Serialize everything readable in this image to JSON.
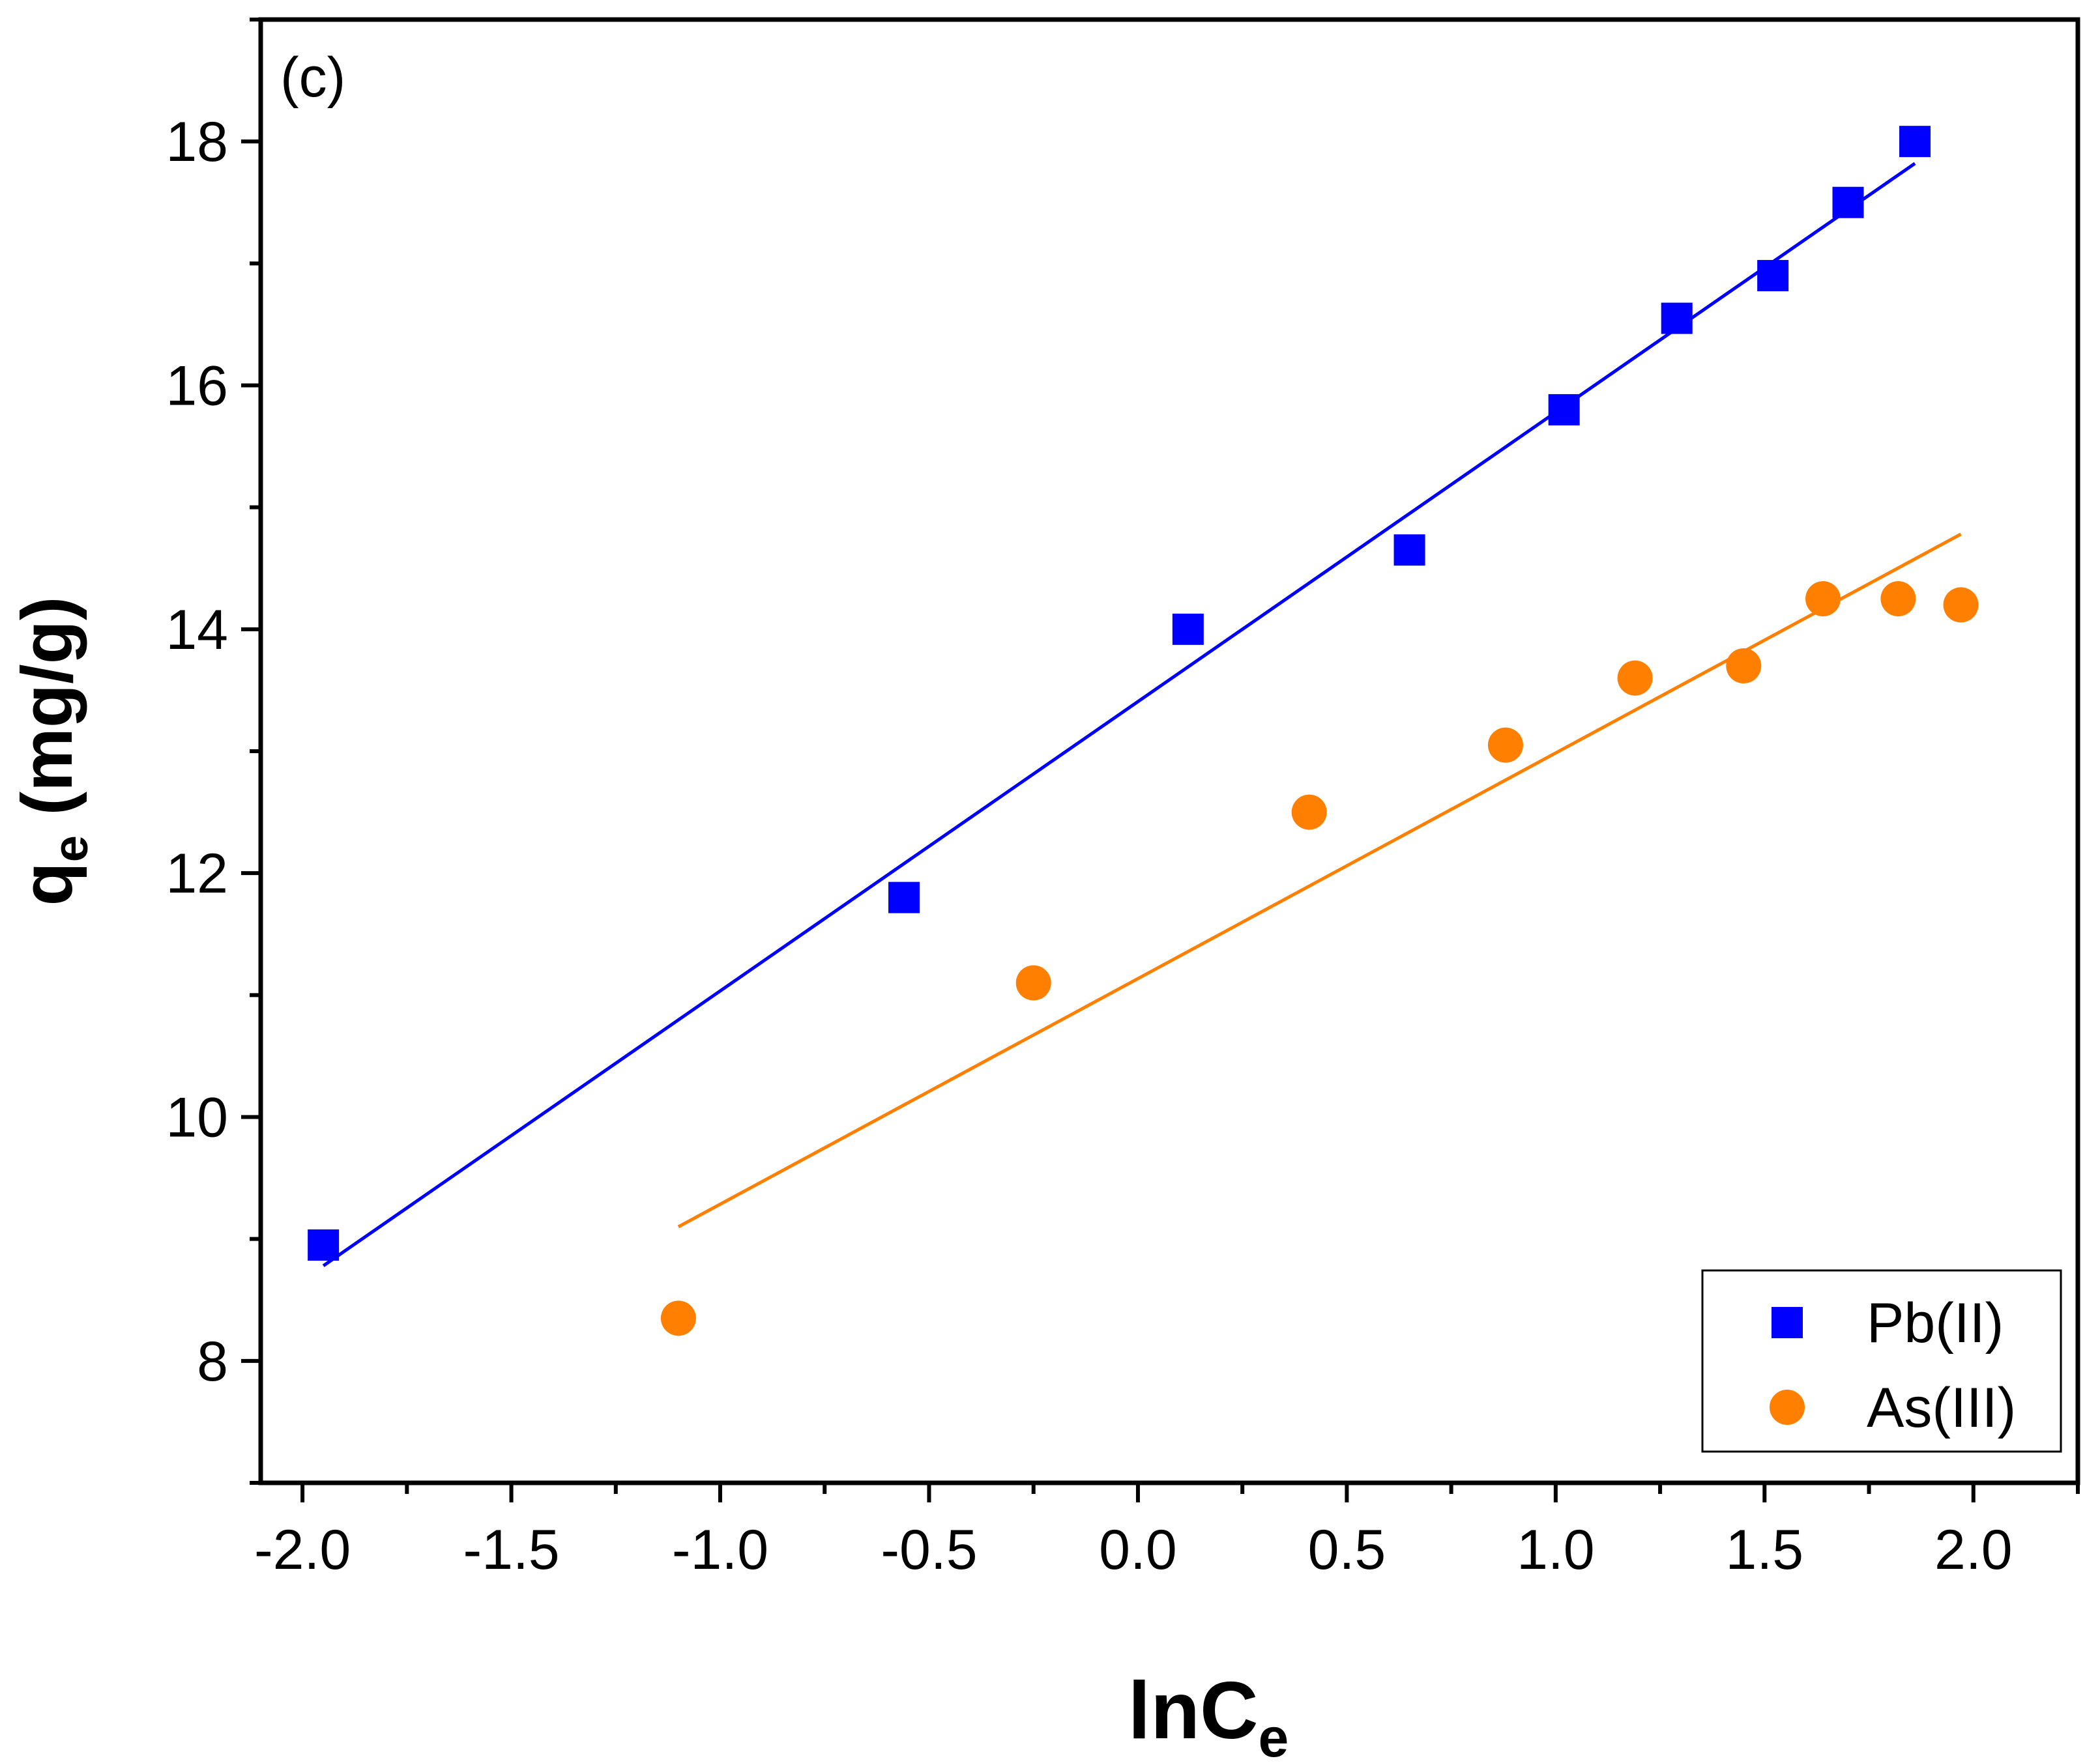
{
  "chart_data": {
    "type": "scatter",
    "panel_label": "(c)",
    "xlabel": {
      "main": "lnC",
      "sub": "e"
    },
    "ylabel": {
      "main": "q",
      "sub": "e",
      "suffix": " (mg/g)"
    },
    "xlim": [
      -2.1,
      2.25
    ],
    "ylim": [
      7.0,
      19.0
    ],
    "x_ticks": [
      -2.0,
      -1.5,
      -1.0,
      -0.5,
      0.0,
      0.5,
      1.0,
      1.5,
      2.0
    ],
    "x_tick_labels": [
      "-2.0",
      "-1.5",
      "-1.0",
      "-0.5",
      "0.0",
      "0.5",
      "1.0",
      "1.5",
      "2.0"
    ],
    "y_ticks": [
      8,
      10,
      12,
      14,
      16,
      18
    ],
    "y_tick_labels": [
      "8",
      "10",
      "12",
      "14",
      "16",
      "18"
    ],
    "legend_position": "bottom-right",
    "series": [
      {
        "name": "Pb(II)",
        "marker": "square",
        "color": "#0000ff",
        "points": [
          [
            -1.95,
            8.95
          ],
          [
            -0.56,
            11.8
          ],
          [
            0.12,
            14.0
          ],
          [
            0.65,
            14.65
          ],
          [
            1.02,
            15.8
          ],
          [
            1.29,
            16.55
          ],
          [
            1.52,
            16.9
          ],
          [
            1.7,
            17.5
          ],
          [
            1.86,
            18.0
          ]
        ],
        "fit": {
          "x1": -1.95,
          "y1": 8.78,
          "x2": 1.86,
          "y2": 17.82
        }
      },
      {
        "name": "As(III)",
        "marker": "circle",
        "color": "#ff8000",
        "points": [
          [
            -1.1,
            8.35
          ],
          [
            -0.25,
            11.1
          ],
          [
            0.41,
            12.5
          ],
          [
            0.88,
            13.05
          ],
          [
            1.19,
            13.6
          ],
          [
            1.45,
            13.7
          ],
          [
            1.64,
            14.25
          ],
          [
            1.82,
            14.25
          ],
          [
            1.97,
            14.2
          ]
        ],
        "fit": {
          "x1": -1.1,
          "y1": 9.1,
          "x2": 1.97,
          "y2": 14.78
        }
      }
    ]
  }
}
